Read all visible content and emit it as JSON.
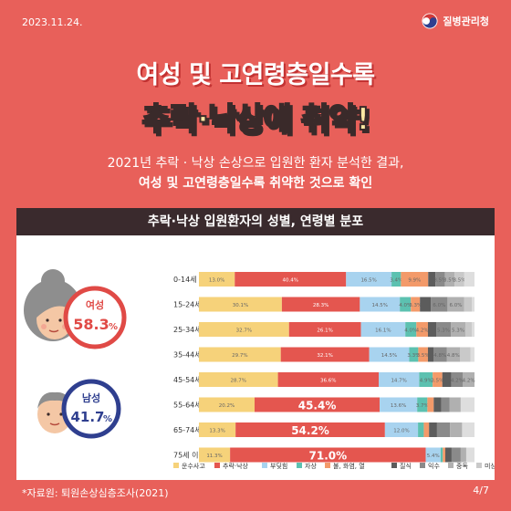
{
  "header": {
    "date": "2023.11.24.",
    "agency": "질병관리청"
  },
  "headline": {
    "line1": "여성 및 고연령층일수록",
    "line2": "추락·낙상에 취약!"
  },
  "subtitle": {
    "line1": "2021년 추락 · 낙상 손상으로 입원한 환자 분석한 결과,",
    "line2": "여성 및 고연령층일수록 취약한 것으로 확인"
  },
  "footer": {
    "source": "*자료원: 퇴원손상심층조사(2021)",
    "page": "4/7"
  },
  "colors": {
    "background": "#e8605a",
    "panel_title": "#3a2a2d",
    "female": "#e04a46",
    "male": "#2f3f8f"
  },
  "chart_data": {
    "type": "bar",
    "stacked": true,
    "orientation": "horizontal",
    "title": "추락·낙상 입원환자의 성별, 연령별 분포",
    "unit": "%",
    "xlim": [
      0,
      100
    ],
    "categories": [
      "0-14세",
      "15-24세",
      "25-34세",
      "35-44세",
      "45-54세",
      "55-64세",
      "65-74세",
      "75세 이상"
    ],
    "series": [
      {
        "name": "운수사고",
        "color": "#f6d27a",
        "values": [
          13.0,
          30.1,
          32.7,
          29.7,
          28.7,
          20.2,
          13.3,
          11.3
        ]
      },
      {
        "name": "추락·낙상",
        "color": "#e4564f",
        "values": [
          40.4,
          28.3,
          26.1,
          32.1,
          36.6,
          45.4,
          54.2,
          71.0
        ]
      },
      {
        "name": "부딪힘",
        "color": "#a8d3ef",
        "values": [
          16.5,
          14.5,
          16.1,
          14.5,
          14.7,
          13.6,
          12.0,
          5.4
        ]
      },
      {
        "name": "자상",
        "color": "#5cc1b0",
        "values": [
          3.4,
          4.0,
          4.0,
          3.3,
          4.9,
          3.7,
          2.1,
          0.8
        ]
      },
      {
        "name": "불, 화염, 열",
        "color": "#f39a6a",
        "values": [
          9.9,
          3.3,
          4.2,
          3.5,
          3.5,
          2.3,
          1.9,
          0.9
        ]
      },
      {
        "name": "질식",
        "color": "#5c5c5c",
        "values": [
          2.6,
          4.0,
          3.0,
          2.0,
          3.3,
          2.7,
          2.9,
          2.3
        ]
      },
      {
        "name": "익수",
        "color": "#8a8a8a",
        "values": [
          3.5,
          6.0,
          5.3,
          4.8,
          4.2,
          3.1,
          4.7,
          3.3
        ]
      },
      {
        "name": "중독",
        "color": "#b0b0b0",
        "values": [
          3.5,
          6.0,
          5.3,
          4.8,
          4.2,
          4.0,
          4.4,
          2.0
        ]
      },
      {
        "name": "미상",
        "color": "#c9c9c9",
        "values": [
          3.5,
          2.9,
          2.3,
          3.9,
          0,
          0,
          0,
          0
        ]
      },
      {
        "name": "기타",
        "color": "#dedede",
        "values": [
          3.7,
          0.9,
          1.0,
          1.4,
          0,
          5.0,
          4.5,
          3.0
        ]
      }
    ],
    "value_labels": [
      [
        "13.0%",
        "40.4%",
        "16.5%",
        "3.4%",
        "9.9%",
        "",
        "3.5%",
        "3.5%",
        "3.5%",
        ""
      ],
      [
        "30.1%",
        "28.3%",
        "14.5%",
        "4.0%",
        "3.3%",
        "",
        "6.0%",
        "6.0%",
        "",
        ""
      ],
      [
        "32.7%",
        "26.1%",
        "16.1%",
        "4.0%",
        "4.2%",
        "",
        "5.3%",
        "5.3%",
        "",
        ""
      ],
      [
        "29.7%",
        "32.1%",
        "14.5%",
        "3.3%",
        "3.5%",
        "",
        "4.8%",
        "4.8%",
        "",
        ""
      ],
      [
        "28.7%",
        "36.6%",
        "14.7%",
        "4.9%",
        "3.5%",
        "",
        "4.2%",
        "4.2%",
        "",
        ""
      ],
      [
        "20.2%",
        "45.4%",
        "13.6%",
        "3.7%",
        "",
        "",
        "",
        "",
        "",
        ""
      ],
      [
        "13.3%",
        "54.2%",
        "12.0%",
        "",
        "",
        "",
        "",
        "",
        "",
        ""
      ],
      [
        "11.3%",
        "71.0%",
        "5.4%",
        "",
        "",
        "",
        "",
        "",
        "",
        ""
      ]
    ],
    "gender": {
      "female": {
        "label": "여성",
        "value": "58.3",
        "unit": "%"
      },
      "male": {
        "label": "남성",
        "value": "41.7",
        "unit": "%"
      }
    }
  }
}
